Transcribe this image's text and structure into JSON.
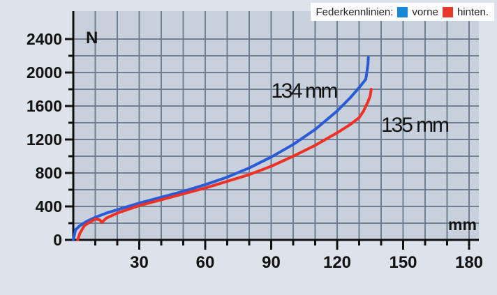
{
  "legend": {
    "title": "Federkennlinien:",
    "items": [
      {
        "label": "vorne",
        "color": "#1a86d6"
      },
      {
        "label": "hinten.",
        "color": "#e8382a"
      }
    ]
  },
  "chart_data": {
    "type": "line",
    "xlabel": "mm",
    "ylabel": "N",
    "xlim": [
      0,
      180
    ],
    "ylim": [
      0,
      2400
    ],
    "x_ticks": [
      30,
      60,
      90,
      120,
      150,
      180
    ],
    "y_ticks": [
      0,
      400,
      800,
      1200,
      1600,
      2000,
      2400
    ],
    "grid": true,
    "legend_position": "top-right",
    "series": [
      {
        "name": "vorne",
        "color": "#2a5bd7",
        "annotation": "134 mm",
        "points": [
          [
            0,
            0
          ],
          [
            1,
            120
          ],
          [
            3,
            170
          ],
          [
            6,
            220
          ],
          [
            10,
            270
          ],
          [
            15,
            320
          ],
          [
            20,
            360
          ],
          [
            30,
            440
          ],
          [
            40,
            510
          ],
          [
            50,
            580
          ],
          [
            60,
            660
          ],
          [
            70,
            750
          ],
          [
            80,
            860
          ],
          [
            90,
            990
          ],
          [
            100,
            1140
          ],
          [
            110,
            1320
          ],
          [
            120,
            1540
          ],
          [
            126,
            1700
          ],
          [
            130,
            1820
          ],
          [
            133,
            1920
          ],
          [
            133.5,
            2000
          ],
          [
            134,
            2100
          ],
          [
            134.2,
            2180
          ]
        ]
      },
      {
        "name": "hinten.",
        "color": "#ee3124",
        "annotation": "135 mm",
        "points": [
          [
            2,
            0
          ],
          [
            3,
            80
          ],
          [
            5,
            170
          ],
          [
            8,
            220
          ],
          [
            10,
            250
          ],
          [
            12,
            240
          ],
          [
            13,
            210
          ],
          [
            15,
            260
          ],
          [
            20,
            320
          ],
          [
            30,
            410
          ],
          [
            40,
            480
          ],
          [
            50,
            550
          ],
          [
            60,
            620
          ],
          [
            70,
            700
          ],
          [
            80,
            780
          ],
          [
            90,
            880
          ],
          [
            100,
            1000
          ],
          [
            110,
            1130
          ],
          [
            120,
            1280
          ],
          [
            126,
            1380
          ],
          [
            130,
            1460
          ],
          [
            132,
            1540
          ],
          [
            134,
            1650
          ],
          [
            135,
            1720
          ],
          [
            135.5,
            1800
          ]
        ]
      }
    ]
  }
}
